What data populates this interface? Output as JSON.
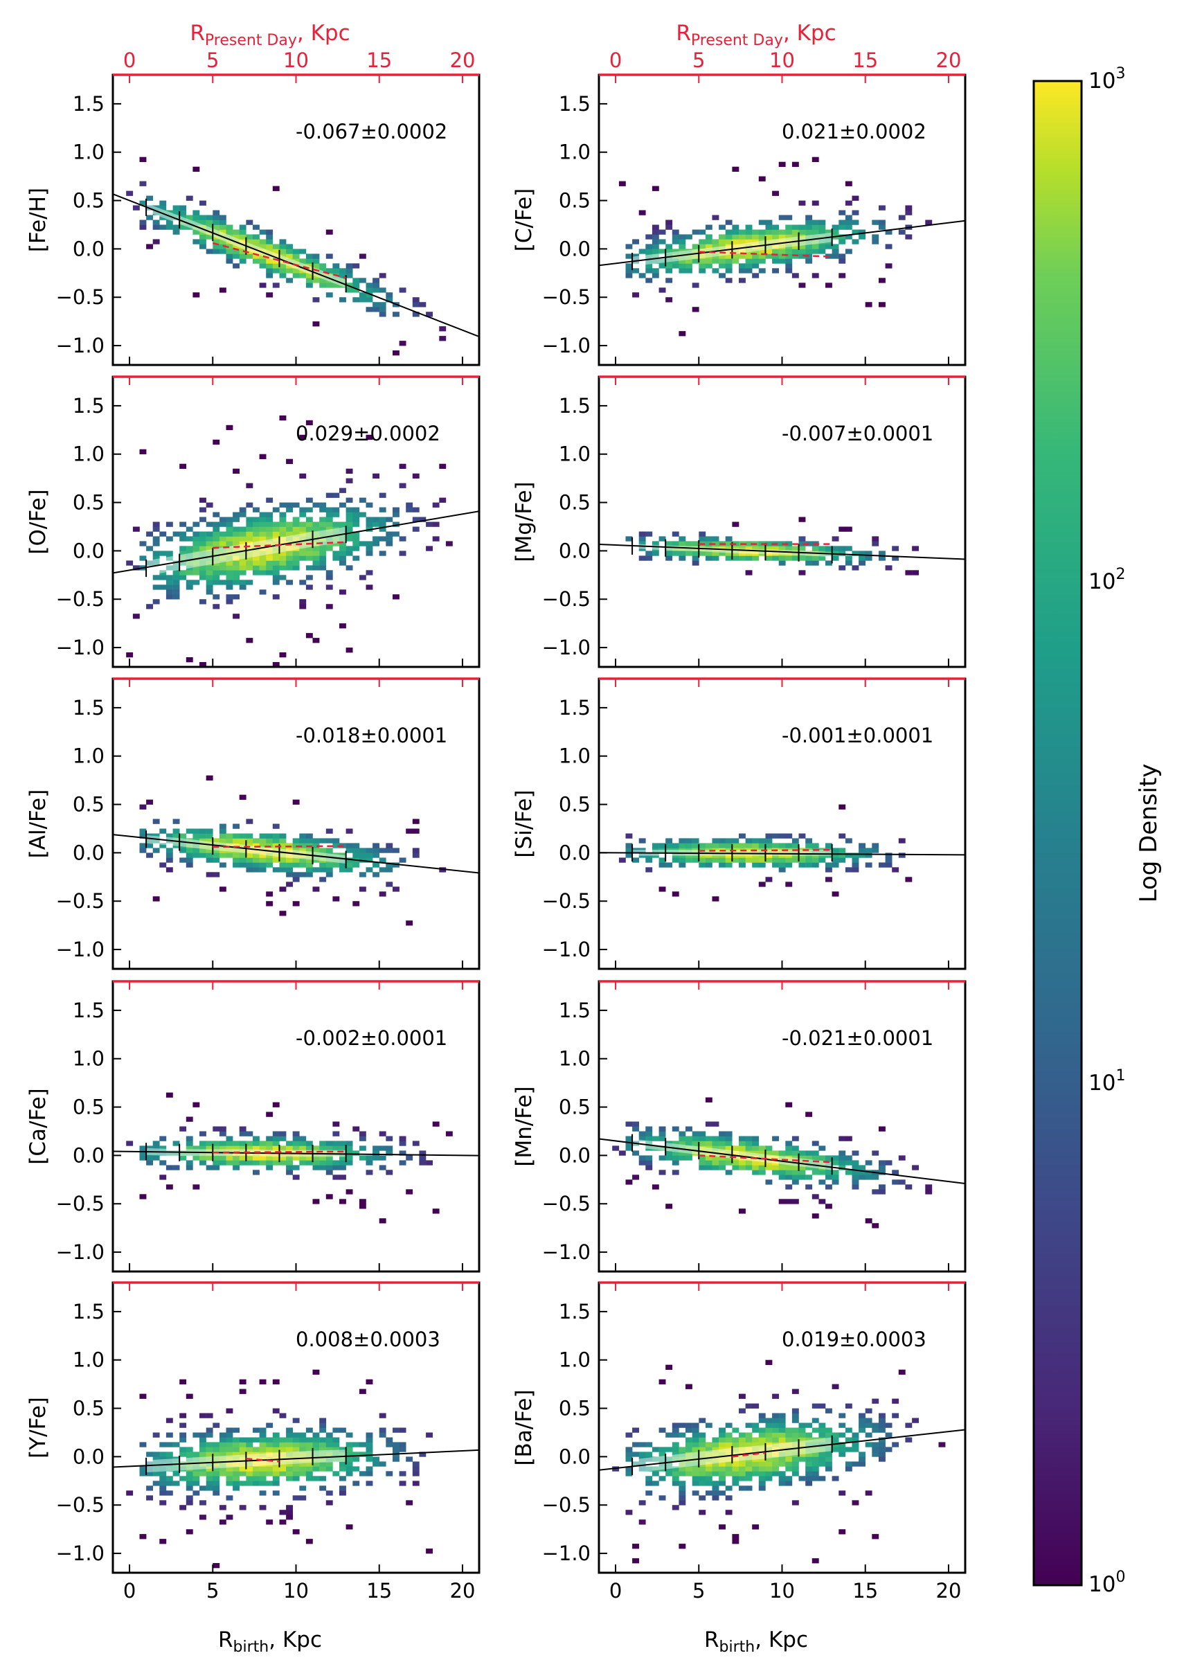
{
  "figure": {
    "top_axis_label_main": "R",
    "top_axis_label_sub": "Present Day",
    "top_axis_label_unit": ", Kpc",
    "bottom_axis_label_main": "R",
    "bottom_axis_label_sub": "birth",
    "bottom_axis_label_unit": ", Kpc",
    "colorbar_label": "Log Density",
    "colorbar_ticks": [
      "10",
      "10",
      "10",
      "10"
    ],
    "colorbar_tick_exponents": [
      "0",
      "1",
      "2",
      "3"
    ],
    "top_axis_color": "#e8213a",
    "fit_line_color": "#000000",
    "present_day_fit_color": "#e8213a"
  },
  "chart_data": [
    {
      "type": "heatmap",
      "ylabel": "[Fe/H]",
      "annotation": "-0.067±0.0002",
      "xlim": [
        -1,
        21
      ],
      "ylim": [
        -1.2,
        1.8
      ],
      "x_ticks": [
        0,
        5,
        10,
        15,
        20
      ],
      "y_ticks": [
        -1.0,
        -0.5,
        0.0,
        0.5,
        1.0,
        1.5
      ],
      "slope": -0.067,
      "intercept": 0.5,
      "binned_x": [
        1,
        3,
        5,
        7,
        9,
        11,
        13
      ],
      "binned_y": [
        0.43,
        0.3,
        0.17,
        0.03,
        -0.1,
        -0.23,
        -0.36
      ],
      "present_day_fit": {
        "x": [
          5,
          13
        ],
        "y": [
          0.06,
          -0.3
        ]
      },
      "spread": 0.12,
      "scale": 1.0
    },
    {
      "type": "heatmap",
      "ylabel": "[C/Fe]",
      "annotation": "0.021±0.0002",
      "xlim": [
        -1,
        21
      ],
      "ylim": [
        -1.2,
        1.8
      ],
      "x_ticks": [
        0,
        5,
        10,
        15,
        20
      ],
      "y_ticks": [
        -1.0,
        -0.5,
        0.0,
        0.5,
        1.0,
        1.5
      ],
      "slope": 0.021,
      "intercept": -0.15,
      "binned_x": [
        1,
        3,
        5,
        7,
        9,
        11,
        13
      ],
      "binned_y": [
        -0.13,
        -0.09,
        -0.05,
        -0.01,
        0.04,
        0.08,
        0.12
      ],
      "present_day_fit": {
        "x": [
          5,
          13
        ],
        "y": [
          -0.03,
          -0.08
        ]
      },
      "spread": 0.14,
      "scale": 1.0
    },
    {
      "type": "heatmap",
      "ylabel": "[O/Fe]",
      "annotation": "0.029±0.0002",
      "xlim": [
        -1,
        21
      ],
      "ylim": [
        -1.2,
        1.8
      ],
      "x_ticks": [
        0,
        5,
        10,
        15,
        20
      ],
      "y_ticks": [
        -1.0,
        -0.5,
        0.0,
        0.5,
        1.0,
        1.5
      ],
      "slope": 0.029,
      "intercept": -0.2,
      "binned_x": [
        1,
        3,
        5,
        7,
        9,
        11,
        13
      ],
      "binned_y": [
        -0.18,
        -0.12,
        -0.06,
        0.0,
        0.06,
        0.12,
        0.17
      ],
      "present_day_fit": {
        "x": [
          5,
          13
        ],
        "y": [
          0.03,
          0.09
        ]
      },
      "spread": 0.22,
      "scale": 1.0
    },
    {
      "type": "heatmap",
      "ylabel": "[Mg/Fe]",
      "annotation": "-0.007±0.0001",
      "xlim": [
        -1,
        21
      ],
      "ylim": [
        -1.2,
        1.8
      ],
      "x_ticks": [
        0,
        5,
        10,
        15,
        20
      ],
      "y_ticks": [
        -1.0,
        -0.5,
        0.0,
        0.5,
        1.0,
        1.5
      ],
      "slope": -0.007,
      "intercept": 0.06,
      "binned_x": [
        1,
        3,
        5,
        7,
        9,
        11,
        13
      ],
      "binned_y": [
        0.05,
        0.03,
        0.02,
        0.0,
        -0.01,
        -0.02,
        -0.04
      ],
      "present_day_fit": {
        "x": [
          5,
          13
        ],
        "y": [
          0.07,
          0.07
        ]
      },
      "spread": 0.07,
      "scale": 1.0
    },
    {
      "type": "heatmap",
      "ylabel": "[Al/Fe]",
      "annotation": "-0.018±0.0001",
      "xlim": [
        -1,
        21
      ],
      "ylim": [
        -1.2,
        1.8
      ],
      "x_ticks": [
        0,
        5,
        10,
        15,
        20
      ],
      "y_ticks": [
        -1.0,
        -0.5,
        0.0,
        0.5,
        1.0,
        1.5
      ],
      "slope": -0.018,
      "intercept": 0.17,
      "binned_x": [
        1,
        3,
        5,
        7,
        9,
        11,
        13
      ],
      "binned_y": [
        0.14,
        0.11,
        0.07,
        0.04,
        0.0,
        -0.03,
        -0.07
      ],
      "present_day_fit": {
        "x": [
          5,
          13
        ],
        "y": [
          0.06,
          0.07
        ]
      },
      "spread": 0.12,
      "scale": 1.0
    },
    {
      "type": "heatmap",
      "ylabel": "[Si/Fe]",
      "annotation": "-0.001±0.0001",
      "xlim": [
        -1,
        21
      ],
      "ylim": [
        -1.2,
        1.8
      ],
      "x_ticks": [
        0,
        5,
        10,
        15,
        20
      ],
      "y_ticks": [
        -1.0,
        -0.5,
        0.0,
        0.5,
        1.0,
        1.5
      ],
      "slope": -0.001,
      "intercept": 0.0,
      "binned_x": [
        1,
        3,
        5,
        7,
        9,
        11,
        13
      ],
      "binned_y": [
        0.0,
        0.0,
        0.0,
        0.0,
        0.0,
        0.0,
        0.0
      ],
      "present_day_fit": {
        "x": [
          5,
          13
        ],
        "y": [
          0.02,
          0.03
        ]
      },
      "spread": 0.09,
      "scale": 1.0
    },
    {
      "type": "heatmap",
      "ylabel": "[Ca/Fe]",
      "annotation": "-0.002±0.0001",
      "xlim": [
        -1,
        21
      ],
      "ylim": [
        -1.2,
        1.8
      ],
      "x_ticks": [
        0,
        5,
        10,
        15,
        20
      ],
      "y_ticks": [
        -1.0,
        -0.5,
        0.0,
        0.5,
        1.0,
        1.5
      ],
      "slope": -0.002,
      "intercept": 0.04,
      "binned_x": [
        1,
        3,
        5,
        7,
        9,
        11,
        13
      ],
      "binned_y": [
        0.04,
        0.03,
        0.03,
        0.03,
        0.02,
        0.02,
        0.02
      ],
      "present_day_fit": {
        "x": [
          5,
          13
        ],
        "y": [
          0.03,
          0.04
        ]
      },
      "spread": 0.1,
      "scale": 1.0
    },
    {
      "type": "heatmap",
      "ylabel": "[Mn/Fe]",
      "annotation": "-0.021±0.0001",
      "xlim": [
        -1,
        21
      ],
      "ylim": [
        -1.2,
        1.8
      ],
      "x_ticks": [
        0,
        5,
        10,
        15,
        20
      ],
      "y_ticks": [
        -1.0,
        -0.5,
        0.0,
        0.5,
        1.0,
        1.5
      ],
      "slope": -0.021,
      "intercept": 0.15,
      "binned_x": [
        1,
        3,
        5,
        7,
        9,
        11,
        13
      ],
      "binned_y": [
        0.13,
        0.09,
        0.05,
        0.01,
        -0.03,
        -0.07,
        -0.11
      ],
      "present_day_fit": {
        "x": [
          5,
          13
        ],
        "y": [
          0.0,
          -0.07
        ]
      },
      "spread": 0.12,
      "scale": 1.0
    },
    {
      "type": "heatmap",
      "ylabel": "[Y/Fe]",
      "annotation": "0.008±0.0003",
      "xlim": [
        -1,
        21
      ],
      "ylim": [
        -1.2,
        1.8
      ],
      "x_ticks": [
        0,
        5,
        10,
        15,
        20
      ],
      "y_ticks": [
        -1.0,
        -0.5,
        0.0,
        0.5,
        1.0,
        1.5
      ],
      "slope": 0.008,
      "intercept": -0.1,
      "binned_x": [
        1,
        3,
        5,
        7,
        9,
        11,
        13
      ],
      "binned_y": [
        -0.1,
        -0.08,
        -0.06,
        -0.04,
        -0.02,
        0.0,
        0.01
      ],
      "present_day_fit": {
        "x": [
          7,
          9
        ],
        "y": [
          -0.02,
          -0.05
        ]
      },
      "spread": 0.18,
      "scale": 1.0
    },
    {
      "type": "heatmap",
      "ylabel": "[Ba/Fe]",
      "annotation": "0.019±0.0003",
      "xlim": [
        -1,
        21
      ],
      "ylim": [
        -1.2,
        1.8
      ],
      "x_ticks": [
        0,
        5,
        10,
        15,
        20
      ],
      "y_ticks": [
        -1.0,
        -0.5,
        0.0,
        0.5,
        1.0,
        1.5
      ],
      "slope": 0.019,
      "intercept": -0.12,
      "binned_x": [
        1,
        3,
        5,
        7,
        9,
        11,
        13
      ],
      "binned_y": [
        -0.1,
        -0.06,
        -0.02,
        0.02,
        0.05,
        0.09,
        0.13
      ],
      "present_day_fit": {
        "x": [
          7,
          9
        ],
        "y": [
          0.0,
          0.04
        ]
      },
      "spread": 0.2,
      "scale": 1.0
    }
  ]
}
